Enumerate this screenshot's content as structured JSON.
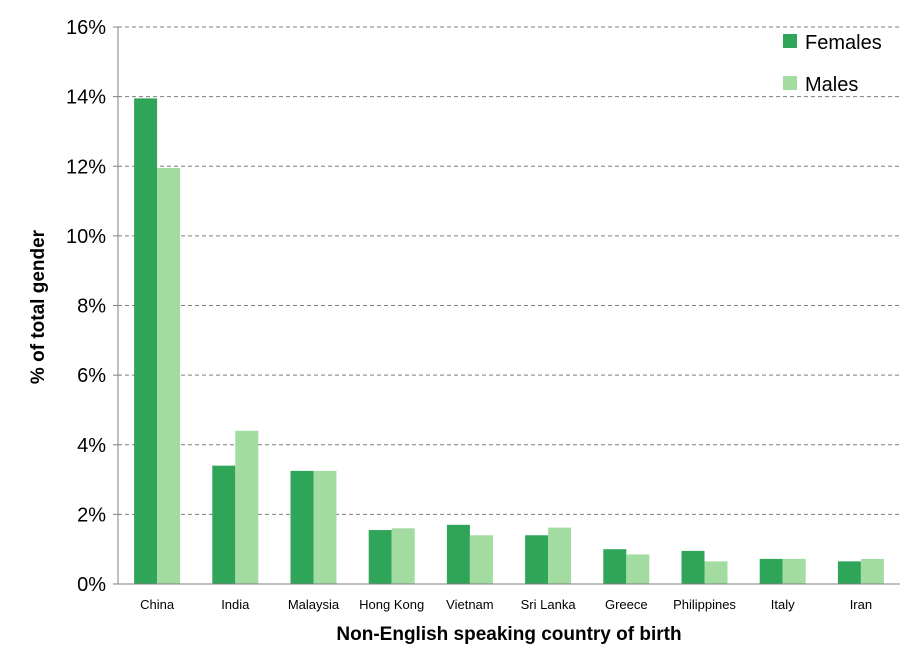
{
  "chart_data": {
    "type": "bar",
    "xlabel": "Non-English speaking country of birth",
    "ylabel": "% of total gender",
    "ylim": [
      0,
      16
    ],
    "y_ticks": [
      "0%",
      "2%",
      "4%",
      "6%",
      "8%",
      "10%",
      "12%",
      "14%",
      "16%"
    ],
    "y_tick_values": [
      0,
      2,
      4,
      6,
      8,
      10,
      12,
      14,
      16
    ],
    "grid": "horizontal dashed",
    "legend_position": "top-right",
    "categories": [
      "China",
      "India",
      "Malaysia",
      "Hong Kong",
      "Vietnam",
      "Sri Lanka",
      "Greece",
      "Philippines",
      "Italy",
      "Iran"
    ],
    "series": [
      {
        "name": "Females",
        "color": "#2fa55a",
        "values": [
          13.95,
          3.4,
          3.25,
          1.55,
          1.7,
          1.4,
          1.0,
          0.95,
          0.72,
          0.65
        ]
      },
      {
        "name": "Males",
        "color": "#a2dca0",
        "values": [
          11.95,
          4.4,
          3.25,
          1.6,
          1.4,
          1.62,
          0.85,
          0.65,
          0.72,
          0.72
        ]
      }
    ]
  }
}
